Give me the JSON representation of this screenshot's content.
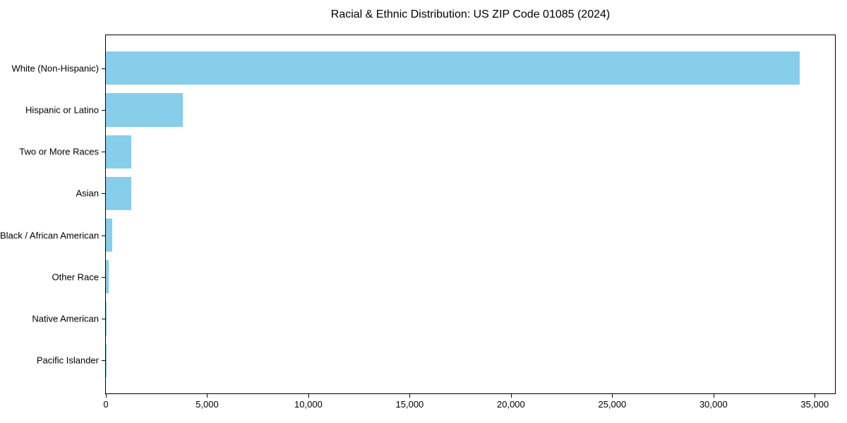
{
  "chart_data": {
    "type": "bar",
    "orientation": "horizontal",
    "title": "Racial & Ethnic Distribution: US ZIP Code 01085 (2024)",
    "categories": [
      "White (Non-Hispanic)",
      "Hispanic or Latino",
      "Two or More Races",
      "Asian",
      "Black / African American",
      "Other Race",
      "Native American",
      "Pacific Islander"
    ],
    "values": [
      34270,
      3790,
      1260,
      1240,
      310,
      140,
      40,
      10
    ],
    "xlabel": "",
    "ylabel": "",
    "xlim": [
      0,
      36000
    ],
    "xticks": [
      0,
      5000,
      10000,
      15000,
      20000,
      25000,
      30000,
      35000
    ],
    "xtick_labels": [
      "0",
      "5,000",
      "10,000",
      "15,000",
      "20,000",
      "25,000",
      "30,000",
      "35,000"
    ],
    "bar_color": "#87CEEB",
    "grid": false,
    "legend_position": "none"
  },
  "colors": {
    "bar": "#87CEEB",
    "axis": "#000000",
    "text": "#000000",
    "background": "#FFFFFF"
  }
}
